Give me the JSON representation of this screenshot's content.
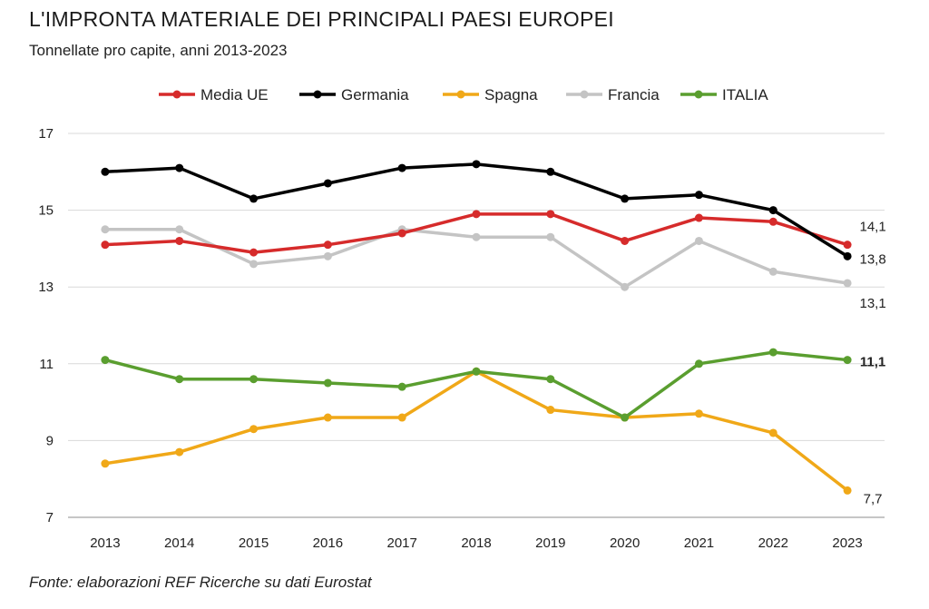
{
  "chart_data": {
    "type": "line",
    "title": "L'IMPRONTA MATERIALE DEI PRINCIPALI PAESI EUROPEI",
    "subtitle": "Tonnellate pro capite, anni 2013-2023",
    "source": "Fonte: elaborazioni REF Ricerche su dati Eurostat",
    "xlabel": "",
    "ylabel": "",
    "ylim": [
      7,
      17
    ],
    "yticks": [
      "7",
      "9",
      "11",
      "13",
      "15",
      "17"
    ],
    "yticks_values": [
      7,
      9,
      11,
      13,
      15,
      17
    ],
    "categories": [
      "2013",
      "2014",
      "2015",
      "2016",
      "2017",
      "2018",
      "2019",
      "2020",
      "2021",
      "2022",
      "2023"
    ],
    "legend_position": "top",
    "grid": "horizontal",
    "series": [
      {
        "name": "Media UE",
        "color": "#d62b2b",
        "values": [
          14.1,
          14.2,
          13.9,
          14.1,
          14.4,
          14.9,
          14.9,
          14.2,
          14.8,
          14.7,
          14.1
        ],
        "end_label": "14,1"
      },
      {
        "name": "Germania",
        "color": "#000000",
        "values": [
          16.0,
          16.1,
          15.3,
          15.7,
          16.1,
          16.2,
          16.0,
          15.3,
          15.4,
          15.0,
          13.8
        ],
        "end_label": "13,8"
      },
      {
        "name": "Spagna",
        "color": "#f0a818",
        "values": [
          8.4,
          8.7,
          9.3,
          9.6,
          9.6,
          10.8,
          9.8,
          9.6,
          9.7,
          9.2,
          7.7
        ],
        "end_label": "7,7"
      },
      {
        "name": "Francia",
        "color": "#c4c4c4",
        "values": [
          14.5,
          14.5,
          13.6,
          13.8,
          14.5,
          14.3,
          14.3,
          13.0,
          14.2,
          13.4,
          13.1
        ],
        "end_label": "13,1"
      },
      {
        "name": "ITALIA",
        "color": "#5a9e2f",
        "values": [
          11.1,
          10.6,
          10.6,
          10.5,
          10.4,
          10.8,
          10.6,
          9.6,
          11.0,
          11.3,
          11.1
        ],
        "end_label": "11,1"
      }
    ]
  }
}
